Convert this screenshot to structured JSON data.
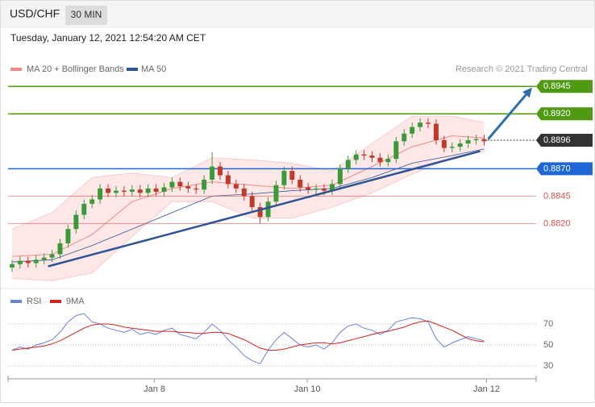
{
  "header": {
    "symbol": "USD/CHF",
    "interval": "30 MIN",
    "timestamp": "Tuesday, January 12, 2021 12:54:20 AM CET"
  },
  "chart_data": [
    {
      "type": "candlestick",
      "credit": "Research © 2021 Trading Central",
      "up_color": "#3a9a3a",
      "down_color": "#c0392b",
      "xlim": [
        -0.5,
        65.5
      ],
      "ylim": [
        0.8763,
        0.8954
      ],
      "open": [
        0.878,
        0.8783,
        0.8786,
        0.8784,
        0.8787,
        0.8789,
        0.8792,
        0.8802,
        0.8815,
        0.8828,
        0.8838,
        0.8842,
        0.8852,
        0.8848,
        0.885,
        0.8849,
        0.8851,
        0.8848,
        0.8852,
        0.8849,
        0.8853,
        0.8858,
        0.8854,
        0.8852,
        0.8851,
        0.886,
        0.8872,
        0.8864,
        0.8856,
        0.8852,
        0.8845,
        0.8835,
        0.8826,
        0.884,
        0.8855,
        0.8868,
        0.886,
        0.8853,
        0.8851,
        0.8852,
        0.885,
        0.8856,
        0.887,
        0.8878,
        0.8883,
        0.8882,
        0.888,
        0.8876,
        0.8879,
        0.8895,
        0.8902,
        0.8908,
        0.8912,
        0.8911,
        0.8896,
        0.8889,
        0.889,
        0.8893,
        0.8896,
        0.8897
      ],
      "high": [
        0.8787,
        0.879,
        0.879,
        0.8791,
        0.8793,
        0.8796,
        0.8806,
        0.8819,
        0.8832,
        0.8842,
        0.8846,
        0.8856,
        0.8856,
        0.8854,
        0.8854,
        0.8855,
        0.8855,
        0.8856,
        0.8856,
        0.8857,
        0.8862,
        0.8862,
        0.8858,
        0.8856,
        0.8864,
        0.8885,
        0.8876,
        0.8868,
        0.886,
        0.8856,
        0.8849,
        0.8839,
        0.8844,
        0.8859,
        0.8872,
        0.8872,
        0.8864,
        0.8857,
        0.8856,
        0.8856,
        0.886,
        0.8874,
        0.8882,
        0.8887,
        0.8887,
        0.8886,
        0.8884,
        0.8883,
        0.8899,
        0.8906,
        0.8912,
        0.8916,
        0.8916,
        0.8915,
        0.89,
        0.8894,
        0.8897,
        0.89,
        0.8901,
        0.8901
      ],
      "low": [
        0.8776,
        0.8779,
        0.878,
        0.878,
        0.8783,
        0.8785,
        0.8788,
        0.8798,
        0.8811,
        0.8824,
        0.8834,
        0.8838,
        0.8844,
        0.8844,
        0.8845,
        0.8845,
        0.8844,
        0.8844,
        0.8845,
        0.8845,
        0.8849,
        0.885,
        0.8848,
        0.8847,
        0.8847,
        0.8856,
        0.886,
        0.8852,
        0.8848,
        0.8841,
        0.8831,
        0.882,
        0.8822,
        0.8836,
        0.8851,
        0.8856,
        0.8849,
        0.8847,
        0.8847,
        0.8846,
        0.8846,
        0.8852,
        0.8866,
        0.8874,
        0.8878,
        0.8876,
        0.8872,
        0.8872,
        0.8875,
        0.8891,
        0.8898,
        0.8904,
        0.8907,
        0.8892,
        0.8885,
        0.8885,
        0.8886,
        0.8889,
        0.8892,
        0.8891
      ],
      "close": [
        0.8783,
        0.8786,
        0.8784,
        0.8787,
        0.8789,
        0.8792,
        0.8802,
        0.8815,
        0.8828,
        0.8838,
        0.8842,
        0.8852,
        0.8848,
        0.885,
        0.8849,
        0.8851,
        0.8848,
        0.8852,
        0.8849,
        0.8853,
        0.8858,
        0.8854,
        0.8852,
        0.8851,
        0.886,
        0.8872,
        0.8864,
        0.8856,
        0.8852,
        0.8845,
        0.8835,
        0.8826,
        0.884,
        0.8855,
        0.8868,
        0.886,
        0.8853,
        0.8851,
        0.8852,
        0.885,
        0.8856,
        0.887,
        0.8878,
        0.8883,
        0.8882,
        0.888,
        0.8876,
        0.8879,
        0.8895,
        0.8902,
        0.8908,
        0.8912,
        0.8911,
        0.8896,
        0.8889,
        0.889,
        0.8893,
        0.8896,
        0.8897,
        0.8895
      ],
      "bands": {
        "name": "MA 20 + Bollinger Bands",
        "color": "#f08a8a",
        "fill": "#fde3e3",
        "x": [
          0,
          5,
          10,
          15,
          20,
          25,
          30,
          35,
          40,
          45,
          50,
          55,
          59
        ],
        "upper": [
          0.8815,
          0.883,
          0.8862,
          0.8866,
          0.8862,
          0.888,
          0.8878,
          0.8875,
          0.8868,
          0.8893,
          0.8918,
          0.8918,
          0.8912
        ],
        "middle": [
          0.879,
          0.8792,
          0.881,
          0.884,
          0.8852,
          0.8858,
          0.8855,
          0.8852,
          0.8855,
          0.8872,
          0.889,
          0.89,
          0.8898
        ],
        "lower": [
          0.877,
          0.8768,
          0.8775,
          0.8808,
          0.884,
          0.884,
          0.8825,
          0.8825,
          0.8835,
          0.8848,
          0.8865,
          0.888,
          0.8886
        ]
      },
      "ma50": {
        "name": "MA 50",
        "color": "#2f5496",
        "values": [
          0.8785,
          0.8787,
          0.88,
          0.8815,
          0.883,
          0.8845,
          0.8847,
          0.885,
          0.8852,
          0.8862,
          0.8875,
          0.8882,
          0.8888
        ]
      },
      "trendline": {
        "color": "#2f5496",
        "x": [
          4.5,
          58.5
        ],
        "y": [
          0.8781,
          0.8886
        ]
      },
      "arrow": {
        "color": "#2f6fb0",
        "x": [
          59.5,
          65
        ],
        "y": [
          0.8897,
          0.8944
        ]
      },
      "levels": [
        {
          "value": 0.8945,
          "label": "0.8945",
          "color": "#4f9a12",
          "line": "solid",
          "label_style": "box"
        },
        {
          "value": 0.892,
          "label": "0.8920",
          "color": "#4f9a12",
          "line": "solid",
          "label_style": "box"
        },
        {
          "value": 0.8896,
          "label": "0.8896",
          "color": "#333333",
          "line": "dotted",
          "label_style": "box"
        },
        {
          "value": 0.887,
          "label": "0.8870",
          "color": "#1f66d6",
          "line": "solid",
          "label_style": "box"
        },
        {
          "value": 0.8845,
          "label": "0.8845",
          "color": "#d9534f",
          "line": "solid",
          "label_style": "text"
        },
        {
          "value": 0.882,
          "label": "0.8820",
          "color": "#d9534f",
          "line": "solid",
          "label_style": "text"
        }
      ]
    },
    {
      "type": "line",
      "xlim": [
        -0.5,
        65.5
      ],
      "ylim": [
        21.5,
        98.5
      ],
      "yticks": [
        30,
        50,
        70
      ],
      "xticks": [
        {
          "value": 17.8,
          "label": "Jan 8"
        },
        {
          "value": 36.9,
          "label": "Jan 10"
        },
        {
          "value": 59.3,
          "label": "Jan 12"
        }
      ],
      "series": [
        {
          "name": "RSI",
          "color": "#6b84d6",
          "values": [
            45,
            48,
            46,
            50,
            52,
            55,
            62,
            72,
            78,
            80,
            72,
            70,
            66,
            64,
            62,
            65,
            60,
            62,
            60,
            64,
            66,
            60,
            58,
            56,
            62,
            70,
            64,
            55,
            48,
            40,
            35,
            32,
            45,
            55,
            62,
            56,
            50,
            48,
            50,
            46,
            52,
            62,
            68,
            70,
            66,
            64,
            60,
            64,
            72,
            74,
            76,
            75,
            72,
            56,
            48,
            52,
            55,
            58,
            56,
            54
          ]
        },
        {
          "name": "9MA",
          "color": "#d62020",
          "values": [
            45,
            46,
            47,
            48,
            49,
            51,
            54,
            58,
            62,
            66,
            69,
            70,
            70,
            69,
            67,
            66,
            65,
            64,
            63,
            63,
            63,
            62,
            62,
            61,
            61,
            62,
            62,
            61,
            58,
            55,
            51,
            47,
            45,
            45,
            46,
            48,
            50,
            51,
            52,
            52,
            51,
            52,
            54,
            56,
            58,
            60,
            62,
            63,
            65,
            67,
            70,
            72,
            73,
            70,
            67,
            64,
            60,
            56,
            54,
            53
          ]
        }
      ]
    }
  ]
}
